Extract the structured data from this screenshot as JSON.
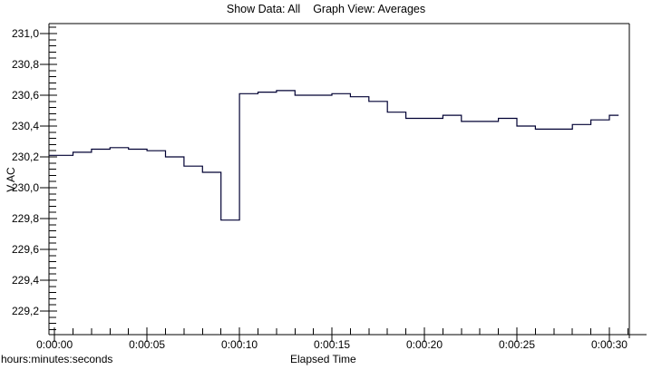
{
  "header": {
    "show_data": "Show Data: All",
    "graph_view": "Graph View: Averages"
  },
  "axes": {
    "y_label": "V AC",
    "x_label": "Elapsed Time",
    "x_format_note": "hours:minutes:seconds"
  },
  "chart_data": {
    "type": "line",
    "subtype": "step",
    "title": "Show Data: All  Graph View: Averages",
    "xlabel": "Elapsed Time",
    "ylabel": "V AC",
    "x_unit": "seconds",
    "grid": false,
    "legend": null,
    "line_color": "#000033",
    "axis_color": "#000000",
    "ylim": [
      229.047,
      231.065
    ],
    "xlim": [
      -0.3,
      31.08
    ],
    "x": [
      0,
      1,
      2,
      3,
      4,
      5,
      6,
      7,
      8,
      9,
      10,
      11,
      12,
      13,
      14,
      15,
      16,
      17,
      18,
      19,
      20,
      21,
      22,
      23,
      24,
      25,
      26,
      27,
      28,
      29,
      30
    ],
    "values": [
      230.21,
      230.23,
      230.25,
      230.26,
      230.25,
      230.24,
      230.2,
      230.14,
      230.1,
      229.79,
      230.61,
      230.62,
      230.63,
      230.6,
      230.6,
      230.61,
      230.59,
      230.56,
      230.49,
      230.45,
      230.45,
      230.47,
      230.43,
      230.43,
      230.45,
      230.4,
      230.38,
      230.38,
      230.41,
      230.44,
      230.47
    ],
    "x_end_seconds": 30.5,
    "y_major_ticks": [
      {
        "value": 231.0,
        "label": "231,0"
      },
      {
        "value": 230.8,
        "label": "230,8"
      },
      {
        "value": 230.6,
        "label": "230,6"
      },
      {
        "value": 230.4,
        "label": "230,4"
      },
      {
        "value": 230.2,
        "label": "230,2"
      },
      {
        "value": 230.0,
        "label": "230,0"
      },
      {
        "value": 229.8,
        "label": "229,8"
      },
      {
        "value": 229.6,
        "label": "229,6"
      },
      {
        "value": 229.4,
        "label": "229,4"
      },
      {
        "value": 229.2,
        "label": "229,2"
      }
    ],
    "y_minor_step": 0.04,
    "y_minor_range": [
      229.08,
      231.04
    ],
    "x_major_ticks": [
      {
        "value": 0,
        "label": "0:00:00"
      },
      {
        "value": 5,
        "label": "0:00:05"
      },
      {
        "value": 10,
        "label": "0:00:10"
      },
      {
        "value": 15,
        "label": "0:00:15"
      },
      {
        "value": 20,
        "label": "0:00:20"
      },
      {
        "value": 25,
        "label": "0:00:25"
      },
      {
        "value": 30,
        "label": "0:00:30"
      }
    ],
    "x_minor_step": 1,
    "x_minor_range": [
      1,
      31
    ]
  }
}
